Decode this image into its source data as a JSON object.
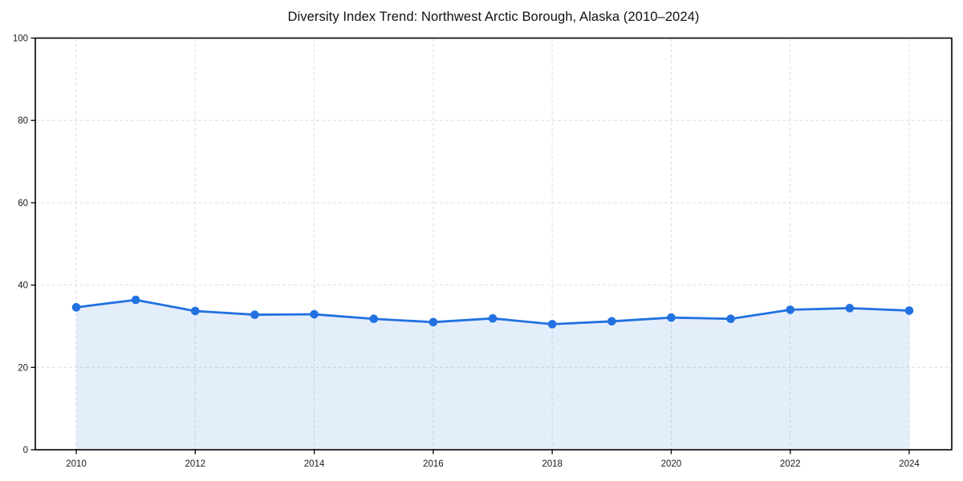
{
  "page": {
    "background": "#ffffff"
  },
  "chart_data": {
    "type": "line",
    "title": "Diversity Index Trend: Northwest Arctic Borough, Alaska (2010–2024)",
    "x": [
      2010,
      2011,
      2012,
      2013,
      2014,
      2015,
      2016,
      2017,
      2018,
      2019,
      2020,
      2021,
      2022,
      2023,
      2024
    ],
    "series": [
      {
        "name": "Diversity Index",
        "values": [
          34.6,
          36.4,
          33.7,
          32.8,
          32.9,
          31.8,
          31.0,
          31.9,
          30.5,
          31.2,
          32.1,
          31.8,
          34.0,
          34.4,
          33.8
        ],
        "line_color": "#2271e0",
        "marker_color": "#2271e0",
        "marker": "circle",
        "area_fill": true,
        "fill_color": "rgba(34,113,224,0.12)"
      }
    ],
    "xlabel": "",
    "ylabel": "",
    "xlim": [
      2010,
      2024
    ],
    "ylim": [
      0,
      100
    ],
    "yticks": [
      0,
      20,
      40,
      60,
      80,
      100
    ],
    "xticks": [
      2010,
      2012,
      2014,
      2016,
      2018,
      2020,
      2022,
      2024
    ],
    "grid": "dashed",
    "grid_color": "#dedede",
    "axis_color": "#000000",
    "tick_label_color": "#1a1a1a",
    "legend": "none"
  }
}
